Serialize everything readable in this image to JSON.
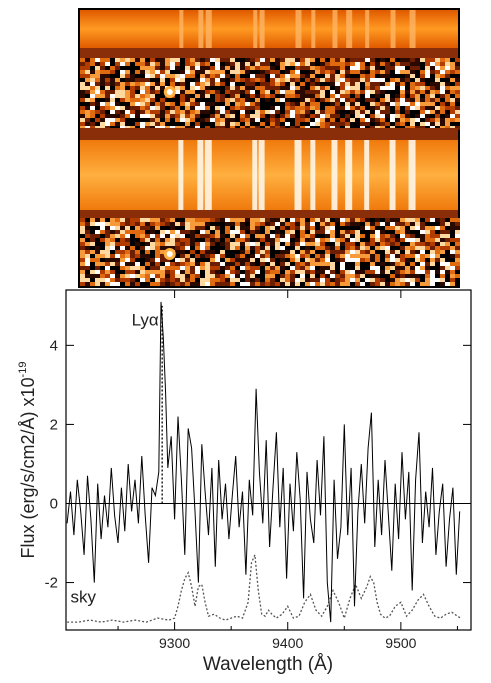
{
  "chart_data": {
    "type": "line",
    "xlabel": "Wavelength (Å)",
    "ylabel_main": "Flux (erg/s/cm2/Å) x10",
    "ylabel_exp": "-19",
    "xlim": [
      9200,
      9560
    ],
    "ylim": [
      -3.2,
      5.4
    ],
    "xticks": [
      9300,
      9400,
      9500
    ],
    "yticks": [
      -2,
      0,
      2,
      4
    ],
    "zero_line": 0,
    "annotations": [
      {
        "text": "Lyα",
        "x": 9262,
        "y": 4.5
      },
      {
        "text": "sky",
        "x": 9208,
        "y": -2.5
      }
    ],
    "line_marker": {
      "x": 9289,
      "y_range": [
        0,
        5.0
      ],
      "style": "dotted"
    },
    "series": [
      {
        "style": "solid",
        "x": [
          9205,
          9208,
          9211,
          9214,
          9217,
          9220,
          9223,
          9226,
          9229,
          9232,
          9235,
          9238,
          9241,
          9244,
          9247,
          9250,
          9253,
          9256,
          9259,
          9262,
          9265,
          9268,
          9271,
          9274,
          9277,
          9280,
          9283,
          9286,
          9288,
          9290,
          9292,
          9294,
          9297,
          9300,
          9303,
          9306,
          9309,
          9312,
          9315,
          9318,
          9321,
          9324,
          9327,
          9330,
          9333,
          9336,
          9339,
          9342,
          9345,
          9348,
          9351,
          9354,
          9357,
          9360,
          9363,
          9366,
          9369,
          9372,
          9375,
          9378,
          9381,
          9384,
          9387,
          9390,
          9393,
          9396,
          9399,
          9402,
          9405,
          9408,
          9411,
          9414,
          9417,
          9420,
          9423,
          9426,
          9429,
          9432,
          9435,
          9438,
          9441,
          9444,
          9447,
          9450,
          9453,
          9456,
          9459,
          9462,
          9465,
          9468,
          9471,
          9474,
          9477,
          9480,
          9483,
          9486,
          9489,
          9492,
          9495,
          9498,
          9501,
          9504,
          9507,
          9510,
          9513,
          9516,
          9519,
          9522,
          9525,
          9528,
          9531,
          9534,
          9537,
          9540,
          9543,
          9546,
          9549,
          9552
        ],
        "y": [
          -0.5,
          0.3,
          -0.8,
          0.6,
          -0.2,
          -1.3,
          0.7,
          -0.4,
          -2.0,
          0.5,
          -0.9,
          0.2,
          -0.6,
          0.9,
          -0.3,
          -1.0,
          0.4,
          -0.7,
          1.0,
          -0.2,
          0.6,
          -0.5,
          1.2,
          -0.3,
          -1.5,
          0.4,
          0.2,
          0.8,
          5.1,
          4.2,
          2.8,
          0.9,
          1.7,
          -0.4,
          2.2,
          0.6,
          -1.3,
          1.9,
          1.4,
          -0.2,
          -2.0,
          1.5,
          0.3,
          -0.8,
          0.9,
          -1.6,
          1.1,
          -0.4,
          0.5,
          -0.9,
          0.2,
          1.2,
          -0.6,
          0.3,
          -1.8,
          0.6,
          -0.3,
          2.9,
          0.8,
          -0.5,
          1.6,
          -1.1,
          0.4,
          1.8,
          -0.6,
          0.9,
          -1.9,
          0.5,
          -0.7,
          1.3,
          0.1,
          -2.4,
          0.8,
          -0.4,
          -1.0,
          1.1,
          -0.3,
          1.7,
          -2.0,
          -3.0,
          0.6,
          -1.4,
          -0.6,
          2.0,
          -0.8,
          0.9,
          -2.6,
          -0.2,
          1.0,
          -0.5,
          1.4,
          2.3,
          -1.1,
          0.6,
          -0.8,
          1.1,
          -0.3,
          -1.7,
          0.5,
          -0.9,
          1.3,
          -0.4,
          0.8,
          -2.2,
          0.6,
          1.8,
          -1.0,
          0.3,
          -0.6,
          0.9,
          -1.3,
          -0.2,
          0.5,
          -1.6,
          -0.4,
          0.4,
          -1.8,
          -0.2
        ]
      },
      {
        "style": "dotted",
        "x": [
          9205,
          9215,
          9225,
          9235,
          9245,
          9255,
          9265,
          9275,
          9285,
          9295,
          9300,
          9303,
          9306,
          9309,
          9312,
          9315,
          9318,
          9321,
          9324,
          9327,
          9330,
          9335,
          9340,
          9345,
          9350,
          9355,
          9360,
          9365,
          9368,
          9371,
          9374,
          9377,
          9380,
          9383,
          9386,
          9390,
          9395,
          9400,
          9405,
          9410,
          9415,
          9420,
          9425,
          9430,
          9435,
          9440,
          9445,
          9450,
          9455,
          9460,
          9465,
          9470,
          9473,
          9476,
          9479,
          9482,
          9486,
          9490,
          9495,
          9500,
          9505,
          9510,
          9515,
          9520,
          9525,
          9530,
          9535,
          9540,
          9545,
          9550,
          9553
        ],
        "y": [
          -3.0,
          -3.0,
          -2.95,
          -3.0,
          -2.95,
          -3.0,
          -2.95,
          -3.0,
          -2.9,
          -2.95,
          -2.9,
          -2.6,
          -2.2,
          -1.9,
          -1.75,
          -2.1,
          -2.6,
          -2.1,
          -2.05,
          -2.5,
          -2.85,
          -2.8,
          -2.9,
          -2.95,
          -2.9,
          -2.85,
          -2.9,
          -2.5,
          -1.5,
          -1.3,
          -2.2,
          -2.8,
          -2.85,
          -2.7,
          -2.8,
          -2.9,
          -2.8,
          -2.6,
          -2.9,
          -2.85,
          -2.5,
          -2.3,
          -2.7,
          -2.85,
          -2.6,
          -2.2,
          -2.5,
          -2.9,
          -2.4,
          -2.05,
          -2.4,
          -2.1,
          -1.85,
          -2.0,
          -2.5,
          -2.8,
          -2.9,
          -2.85,
          -2.6,
          -2.5,
          -2.85,
          -2.7,
          -2.45,
          -2.3,
          -2.6,
          -2.85,
          -2.9,
          -2.8,
          -2.75,
          -2.85,
          -2.9
        ]
      }
    ]
  }
}
